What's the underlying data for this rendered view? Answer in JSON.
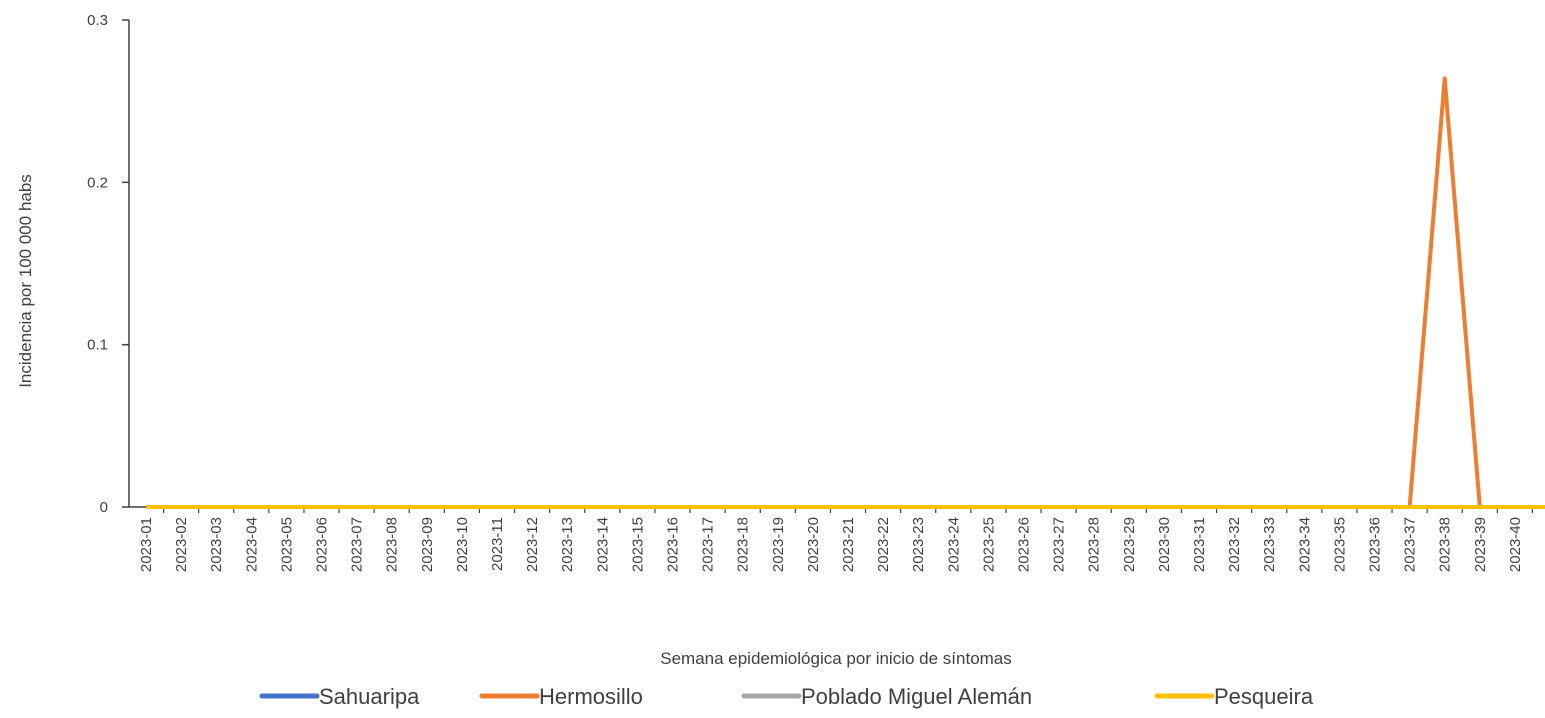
{
  "chart_data": {
    "type": "line",
    "title": "",
    "xlabel": "Semana epidemiológica por inicio de síntomas",
    "ylabel": "Incidencia por 100 000 habs",
    "ylim": [
      0,
      0.3
    ],
    "yticks": [
      "0",
      "0.1",
      "0.2",
      "0.3"
    ],
    "grid": false,
    "legend_position": "bottom",
    "categories": [
      "2023-01",
      "2023-02",
      "2023-03",
      "2023-04",
      "2023-05",
      "2023-06",
      "2023-07",
      "2023-08",
      "2023-09",
      "2023-10",
      "2023-11",
      "2023-12",
      "2023-13",
      "2023-14",
      "2023-15",
      "2023-16",
      "2023-17",
      "2023-18",
      "2023-19",
      "2023-20",
      "2023-21",
      "2023-22",
      "2023-23",
      "2023-24",
      "2023-25",
      "2023-26",
      "2023-27",
      "2023-28",
      "2023-29",
      "2023-30",
      "2023-31",
      "2023-32",
      "2023-33",
      "2023-34",
      "2023-35",
      "2023-36",
      "2023-37",
      "2023-38",
      "2023-39",
      "2023-40"
    ],
    "series": [
      {
        "name": "Sahuaripa",
        "color": "#4472C4",
        "values": [
          0,
          0,
          0,
          0,
          0,
          0,
          0,
          0,
          0,
          0,
          0,
          0,
          0,
          0,
          0,
          0,
          0,
          0,
          0,
          0,
          0,
          0,
          0,
          0,
          0,
          0,
          0,
          0,
          0,
          0,
          0,
          0,
          0,
          0,
          0,
          0,
          0,
          0,
          0,
          0
        ]
      },
      {
        "name": "Hermosillo",
        "color": "#ED7D31",
        "values": [
          0,
          0,
          0,
          0,
          0,
          0,
          0,
          0,
          0,
          0,
          0,
          0,
          0,
          0,
          0,
          0,
          0,
          0,
          0,
          0,
          0,
          0,
          0,
          0,
          0,
          0,
          0,
          0,
          0,
          0,
          0,
          0,
          0,
          0,
          0,
          0,
          0,
          0.264,
          0,
          0
        ]
      },
      {
        "name": "Poblado Miguel Alemán",
        "color": "#A5A5A5",
        "values": [
          0,
          0,
          0,
          0,
          0,
          0,
          0,
          0,
          0,
          0,
          0,
          0,
          0,
          0,
          0,
          0,
          0,
          0,
          0,
          0,
          0,
          0,
          0,
          0,
          0,
          0,
          0,
          0,
          0,
          0,
          0,
          0,
          0,
          0,
          0,
          0,
          0,
          0,
          0,
          0
        ]
      },
      {
        "name": "Pesqueira",
        "color": "#FFC000",
        "values": [
          0,
          0,
          0,
          0,
          0,
          0,
          0,
          0,
          0,
          0,
          0,
          0,
          0,
          0,
          0,
          0,
          0,
          0,
          0,
          0,
          0,
          0,
          0,
          0,
          0,
          0,
          0,
          0,
          0,
          0,
          0,
          0,
          0,
          0,
          0,
          0,
          0,
          0,
          0,
          0
        ]
      }
    ]
  }
}
